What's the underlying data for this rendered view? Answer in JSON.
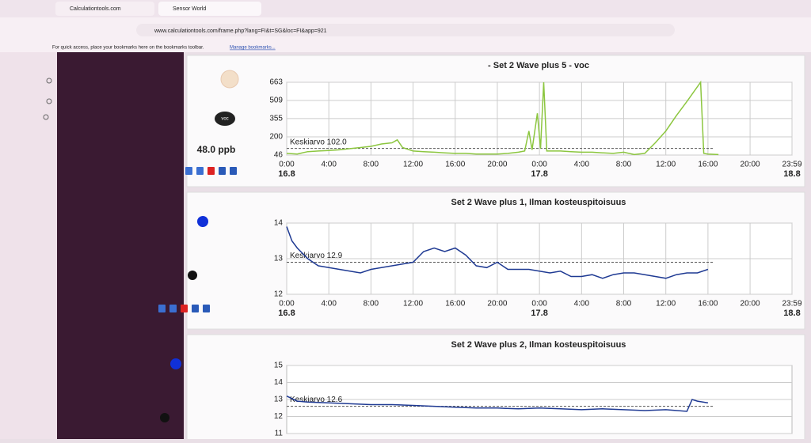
{
  "browser": {
    "tabs": [
      "Calculationtools.com",
      "Sensor World"
    ],
    "url": "www.calculationtools.com/frame.php?lang=FI&t=SG&loc=FI&app=921",
    "bookmarks_hint": "For quick access, place your bookmarks here on the bookmarks toolbar.",
    "bookmarks_link": "Manage bookmarks..."
  },
  "panels": [
    {
      "title": "- Set 2 Wave plus 5 - voc",
      "icon_label": "voc",
      "reading": "48.0 ppb",
      "chart": {
        "type": "line",
        "grid": true,
        "xlim": [
          0,
          47.98
        ],
        "ylim": [
          46,
          663
        ],
        "yticks": [
          46,
          200,
          355,
          509,
          663
        ],
        "xticks": [
          {
            "value": 0,
            "label": "0:00"
          },
          {
            "value": 4,
            "label": "4:00"
          },
          {
            "value": 8,
            "label": "8:00"
          },
          {
            "value": 12,
            "label": "12:00"
          },
          {
            "value": 16,
            "label": "16:00"
          },
          {
            "value": 20,
            "label": "20:00"
          },
          {
            "value": 24,
            "label": "0:00"
          },
          {
            "value": 28,
            "label": "4:00"
          },
          {
            "value": 32,
            "label": "8:00"
          },
          {
            "value": 36,
            "label": "12:00"
          },
          {
            "value": 40,
            "label": "16:00"
          },
          {
            "value": 44,
            "label": "20:00"
          },
          {
            "value": 47.98,
            "label": "23:59"
          }
        ],
        "day_ticks": [
          {
            "value": 0,
            "label": "16.8"
          },
          {
            "value": 24,
            "label": "17.8"
          },
          {
            "value": 47.98,
            "label": "18.8"
          }
        ],
        "average": 102.0,
        "average_label": "Keskiarvo 102.0",
        "series": {
          "color": "#8cc63f",
          "x": [
            0,
            1,
            2,
            3,
            4,
            5,
            6,
            7,
            8,
            9,
            10,
            10.5,
            11,
            12,
            13,
            14,
            15,
            16,
            17,
            18,
            19,
            20,
            21,
            22,
            22.6,
            23,
            23.3,
            23.8,
            24.1,
            24.4,
            24.7,
            25,
            26,
            27,
            28,
            29,
            30,
            31,
            32,
            33,
            34,
            35,
            36,
            37,
            38,
            39.3,
            39.6,
            40,
            41
          ],
          "values": [
            60,
            55,
            75,
            80,
            85,
            90,
            100,
            110,
            120,
            140,
            150,
            175,
            110,
            80,
            75,
            70,
            65,
            60,
            60,
            55,
            55,
            55,
            60,
            70,
            80,
            250,
            90,
            400,
            100,
            663,
            80,
            80,
            80,
            75,
            70,
            70,
            65,
            60,
            70,
            50,
            60,
            150,
            250,
            380,
            500,
            663,
            60,
            55,
            50
          ]
        }
      }
    },
    {
      "title": "Set 2 Wave plus 1, Ilman kosteuspitoisuus",
      "chart": {
        "type": "line",
        "grid": true,
        "xlim": [
          0,
          47.98
        ],
        "ylim": [
          12,
          14
        ],
        "yticks": [
          12,
          13,
          14
        ],
        "xticks": [
          {
            "value": 0,
            "label": "0:00"
          },
          {
            "value": 4,
            "label": "4:00"
          },
          {
            "value": 8,
            "label": "8:00"
          },
          {
            "value": 12,
            "label": "12:00"
          },
          {
            "value": 16,
            "label": "16:00"
          },
          {
            "value": 20,
            "label": "20:00"
          },
          {
            "value": 24,
            "label": "0:00"
          },
          {
            "value": 28,
            "label": "4:00"
          },
          {
            "value": 32,
            "label": "8:00"
          },
          {
            "value": 36,
            "label": "12:00"
          },
          {
            "value": 40,
            "label": "16:00"
          },
          {
            "value": 44,
            "label": "20:00"
          },
          {
            "value": 47.98,
            "label": "23:59"
          }
        ],
        "day_ticks": [
          {
            "value": 0,
            "label": "16.8"
          },
          {
            "value": 24,
            "label": "17.8"
          },
          {
            "value": 47.98,
            "label": "18.8"
          }
        ],
        "average": 12.9,
        "average_label": "Keskiarvo 12.9",
        "series": {
          "color": "#1f3a93",
          "x": [
            0,
            0.5,
            1,
            2,
            3,
            4,
            5,
            6,
            7,
            8,
            9,
            10,
            11,
            12,
            13,
            14,
            15,
            16,
            17,
            18,
            19,
            20,
            21,
            22,
            23,
            24,
            25,
            26,
            27,
            28,
            29,
            30,
            31,
            32,
            33,
            34,
            35,
            36,
            37,
            38,
            39,
            40
          ],
          "values": [
            13.9,
            13.5,
            13.3,
            13.0,
            12.8,
            12.75,
            12.7,
            12.65,
            12.6,
            12.7,
            12.75,
            12.8,
            12.85,
            12.9,
            13.2,
            13.3,
            13.2,
            13.3,
            13.1,
            12.8,
            12.75,
            12.9,
            12.7,
            12.7,
            12.7,
            12.65,
            12.6,
            12.65,
            12.5,
            12.5,
            12.55,
            12.45,
            12.55,
            12.6,
            12.6,
            12.55,
            12.5,
            12.45,
            12.55,
            12.6,
            12.6,
            12.7
          ]
        }
      }
    },
    {
      "title": "Set 2 Wave plus 2, Ilman kosteuspitoisuus",
      "chart": {
        "type": "line",
        "grid": true,
        "xlim": [
          0,
          47.98
        ],
        "ylim": [
          11,
          15
        ],
        "yticks": [
          11,
          12,
          13,
          14,
          15
        ],
        "average": 12.6,
        "average_label": "Keskiarvo 12.6",
        "series": {
          "color": "#1f3a93",
          "x": [
            0,
            1,
            2,
            4,
            6,
            8,
            10,
            12,
            14,
            16,
            18,
            20,
            22,
            24,
            26,
            28,
            30,
            32,
            34,
            36,
            38,
            38.5,
            39,
            40
          ],
          "values": [
            13.2,
            12.9,
            12.85,
            12.8,
            12.75,
            12.7,
            12.7,
            12.65,
            12.6,
            12.55,
            12.5,
            12.5,
            12.45,
            12.5,
            12.45,
            12.4,
            12.45,
            12.4,
            12.35,
            12.4,
            12.3,
            13.0,
            12.9,
            12.8
          ]
        }
      }
    }
  ]
}
